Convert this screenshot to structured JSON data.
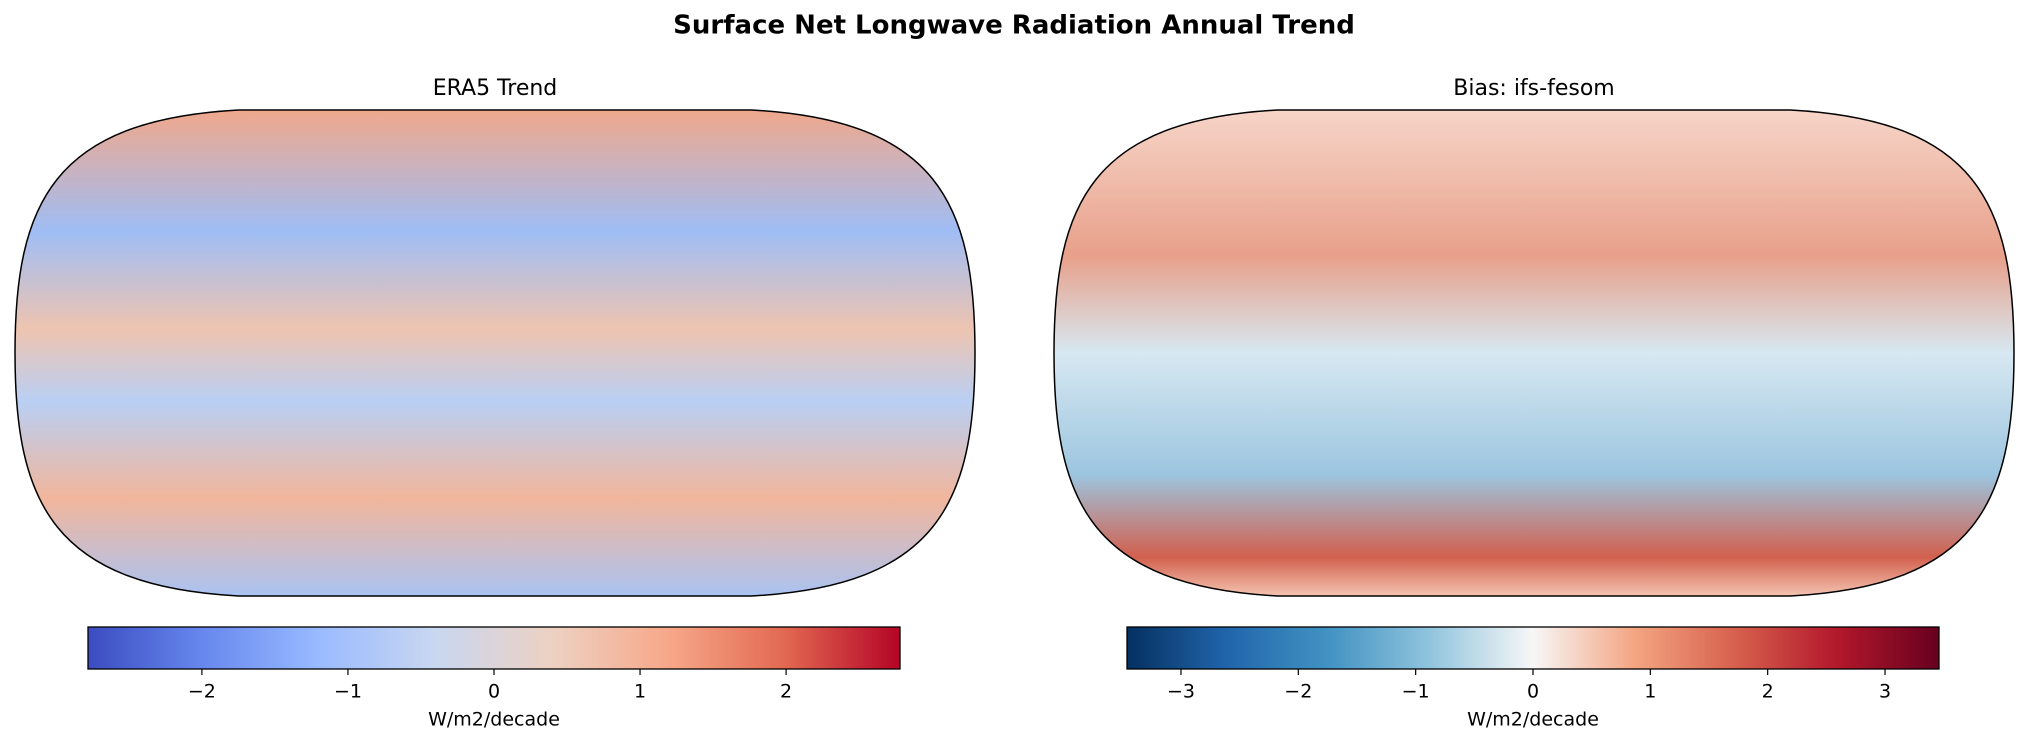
{
  "title": "Surface Net Longwave Radiation Annual Trend",
  "chart_data": [
    {
      "type": "map",
      "title": "ERA5 Trend",
      "colorbar": {
        "label": "W/m2/decade",
        "lim": [
          -2.78,
          2.78
        ],
        "ticks": [
          {
            "value": -2,
            "label": "−2"
          },
          {
            "value": -1,
            "label": "−1"
          },
          0,
          1,
          2
        ],
        "colormap": [
          "#3b4cc0",
          "#6788ee",
          "#9abbff",
          "#c9d7f0",
          "#edd1c2",
          "#f7a889",
          "#e26952",
          "#b40426"
        ]
      }
    },
    {
      "type": "map",
      "title": "Bias: ifs-fesom",
      "colorbar": {
        "label": "W/m2/decade",
        "lim": [
          -3.46,
          3.46
        ],
        "ticks": [
          {
            "value": -3,
            "label": "−3"
          },
          {
            "value": -2,
            "label": "−2"
          },
          {
            "value": -1,
            "label": "−1"
          },
          0,
          1,
          2,
          3
        ],
        "colormap": [
          "#053061",
          "#2166ac",
          "#4393c3",
          "#92c5de",
          "#f7f7f7",
          "#f4a582",
          "#d6604d",
          "#b2182b",
          "#67001f"
        ]
      }
    }
  ]
}
